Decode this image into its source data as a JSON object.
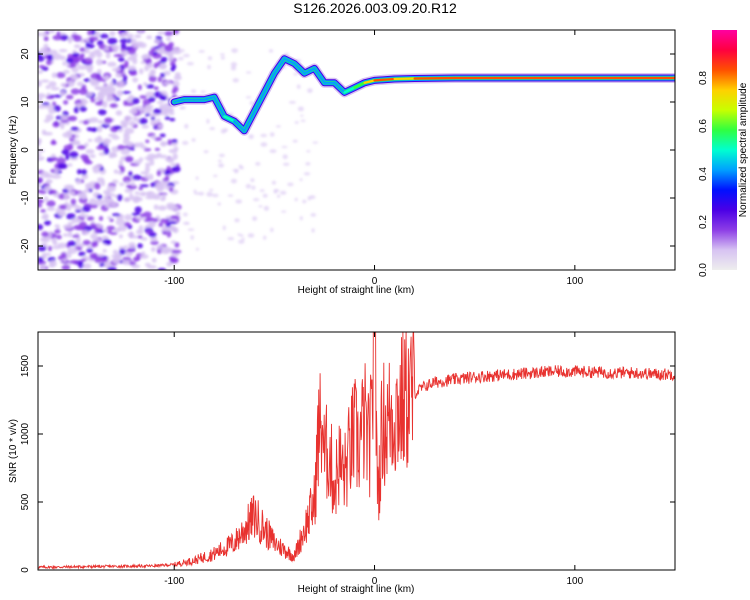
{
  "title": "S126.2026.003.09.20.R12",
  "colors": {
    "snr_line": "#e8322f",
    "axis": "#000000",
    "colormap": [
      "#eeeeee",
      "#d7c3f2",
      "#8d3ee6",
      "#4b00e6",
      "#0010ff",
      "#00a0ff",
      "#00ffd0",
      "#30ff40",
      "#c8ff00",
      "#ffd000",
      "#ff5000",
      "#ff0040",
      "#ff00a0"
    ]
  },
  "chart_data": [
    {
      "type": "heatmap",
      "title": "",
      "xlabel": "Height of straight line (km)",
      "ylabel": "Frequency (Hz)",
      "xlim": [
        -168,
        150
      ],
      "ylim": [
        -25,
        25
      ],
      "xticks": [
        -100,
        0,
        100
      ],
      "yticks": [
        -20,
        -10,
        0,
        10,
        20
      ],
      "colorbar": {
        "label": "Normalized spectral amplitude",
        "range": [
          0.0,
          1.0
        ],
        "ticks": [
          0.0,
          0.2,
          0.4,
          0.6,
          0.8
        ]
      },
      "features": {
        "noise_region_x": [
          -168,
          -98
        ],
        "carrier_line": {
          "x": [
            -100,
            -95,
            -90,
            -85,
            -80,
            -75,
            -70,
            -65,
            -60,
            -55,
            -50,
            -45,
            -40,
            -35,
            -30,
            -25,
            -20,
            -15,
            -10,
            -5,
            0,
            10,
            20,
            40,
            60,
            80,
            100,
            120,
            150
          ],
          "frequency": [
            10,
            10.5,
            10.5,
            10.5,
            11,
            7,
            6,
            4,
            8,
            12,
            16,
            19,
            18,
            16,
            17,
            14,
            14,
            12,
            13,
            14,
            14.5,
            14.8,
            14.9,
            15,
            15,
            15,
            15,
            15,
            15
          ],
          "amplitude": [
            0.45,
            0.45,
            0.4,
            0.45,
            0.4,
            0.45,
            0.5,
            0.35,
            0.4,
            0.45,
            0.45,
            0.4,
            0.4,
            0.35,
            0.45,
            0.4,
            0.4,
            0.5,
            0.55,
            0.65,
            0.85,
            0.8,
            0.78,
            0.82,
            0.8,
            0.8,
            0.82,
            0.82,
            0.82
          ]
        }
      }
    },
    {
      "type": "line",
      "title": "",
      "xlabel": "Height of straight line (km)",
      "ylabel": "SNR (10 * v/v)",
      "xlim": [
        -168,
        150
      ],
      "ylim": [
        0,
        1750
      ],
      "xticks": [
        -100,
        0,
        100
      ],
      "yticks": [
        0,
        500,
        1000,
        1500
      ],
      "series": [
        {
          "x": [
            -168,
            -140,
            -110,
            -100,
            -90,
            -80,
            -70,
            -65,
            -60,
            -55,
            -50,
            -45,
            -40,
            -35,
            -30,
            -28,
            -26,
            -25,
            -23,
            -20,
            -18,
            -15,
            -12,
            -10,
            -8,
            -5,
            -3,
            -2,
            -1,
            0,
            1,
            2,
            4,
            6,
            8,
            10,
            15,
            20,
            25,
            30,
            40,
            50,
            60,
            70,
            80,
            90,
            100,
            110,
            120,
            130,
            140,
            150
          ],
          "y": [
            20,
            25,
            30,
            40,
            70,
            120,
            200,
            300,
            400,
            300,
            200,
            150,
            100,
            300,
            500,
            1000,
            1100,
            800,
            900,
            600,
            800,
            700,
            900,
            1000,
            900,
            1100,
            900,
            1000,
            1100,
            1500,
            900,
            600,
            1100,
            1050,
            1150,
            1150,
            1250,
            1300,
            1350,
            1380,
            1400,
            1420,
            1430,
            1440,
            1450,
            1460,
            1460,
            1455,
            1450,
            1450,
            1440,
            1440
          ]
        }
      ]
    }
  ]
}
